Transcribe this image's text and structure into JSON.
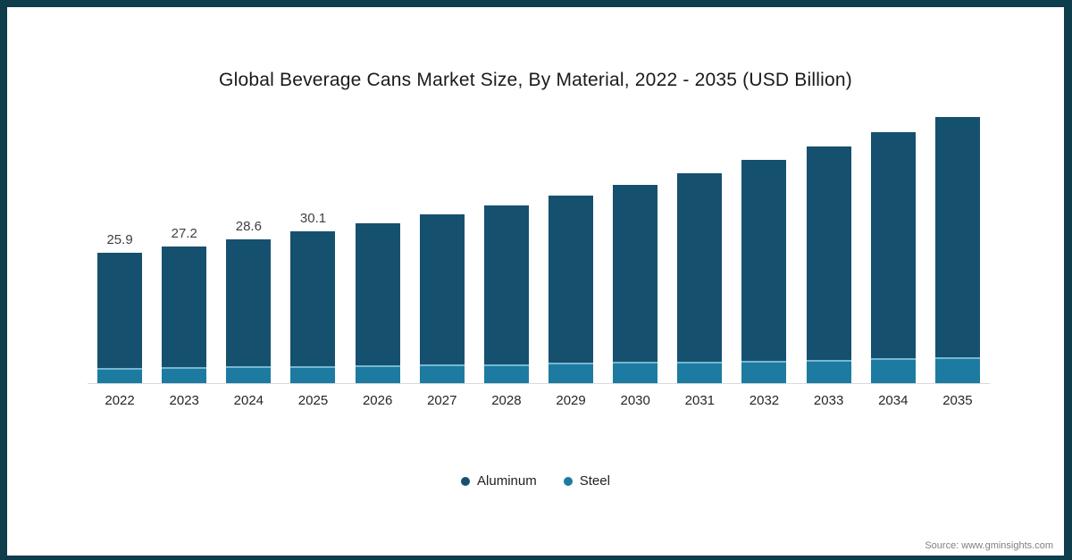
{
  "title": "Global Beverage Cans Market Size, By Material, 2022 - 2035 (USD Billion)",
  "source": "Source: www.gminsights.com",
  "colors": {
    "frame_border": "#0e3d4c",
    "aluminum": "#16506f",
    "steel": "#1d7ba1",
    "steel_highlight": "#74b8d0",
    "axis_line": "#d9d9d9",
    "value_label_text": "#404040",
    "axis_label_text": "#262626",
    "source_text": "#808080"
  },
  "legend": {
    "position": "bottom",
    "items": [
      {
        "label": "Aluminum",
        "color": "#16506f"
      },
      {
        "label": "Steel",
        "color": "#1d7ba1"
      }
    ]
  },
  "chart_data": {
    "type": "bar",
    "stacked": true,
    "title": "Global Beverage Cans Market Size, By Material, 2022 - 2035 (USD Billion)",
    "categories": [
      "2022",
      "2023",
      "2024",
      "2025",
      "2026",
      "2027",
      "2028",
      "2029",
      "2030",
      "2031",
      "2032",
      "2033",
      "2034",
      "2035"
    ],
    "series": [
      {
        "name": "Aluminum",
        "color": "#16506f",
        "values": [
          22.8,
          24.0,
          25.3,
          26.7,
          28.3,
          29.8,
          31.5,
          33.2,
          35.2,
          37.4,
          39.8,
          42.3,
          45.0,
          47.7
        ]
      },
      {
        "name": "Steel",
        "color": "#1d7ba1",
        "values": [
          3.1,
          3.2,
          3.3,
          3.4,
          3.5,
          3.7,
          3.8,
          4.0,
          4.2,
          4.3,
          4.5,
          4.7,
          4.9,
          5.1
        ]
      }
    ],
    "totals": [
      25.9,
      27.2,
      28.6,
      30.1,
      31.8,
      33.5,
      35.3,
      37.2,
      39.4,
      41.7,
      44.3,
      47.0,
      49.9,
      52.8
    ],
    "total_labels": [
      "25.9",
      "27.2",
      "28.6",
      "30.1",
      "",
      "",
      "",
      "",
      "",
      "",
      "",
      "",
      "",
      ""
    ],
    "xlabel": "",
    "ylabel": "",
    "ylim": [
      0,
      55
    ],
    "grid": false,
    "legend_position": "bottom"
  }
}
